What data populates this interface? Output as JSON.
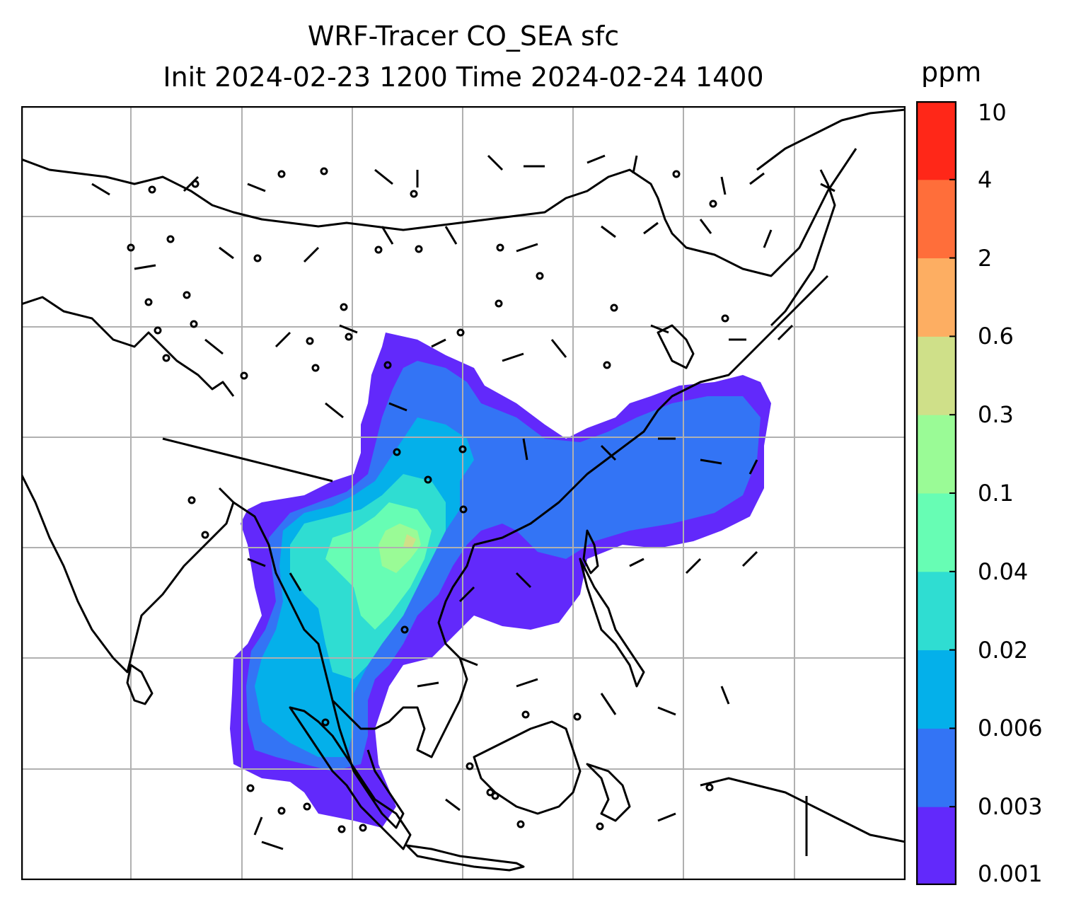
{
  "title": {
    "line1": "WRF-Tracer CO_SEA sfc",
    "line2": "Init 2024-02-23 1200 Time 2024-02-24 1400"
  },
  "colorbar": {
    "unit": "ppm",
    "ticks": [
      "0.001",
      "0.003",
      "0.006",
      "0.02",
      "0.04",
      "0.1",
      "0.3",
      "0.6",
      "2",
      "4",
      "10"
    ],
    "colors": [
      "#6229fb",
      "#3374f5",
      "#04b0ea",
      "#2fddd2",
      "#67fdb4",
      "#9afb96",
      "#cfe089",
      "#fdae62",
      "#ff6e3a",
      "#ff2718"
    ]
  },
  "map": {
    "background": "#ffffff",
    "coastline_color": "#000000",
    "gridline_color": "#b0b0b0",
    "field_classes": [
      "0.001-0.003",
      "0.003-0.006",
      "0.006-0.02",
      "0.02-0.04",
      "0.04-0.1",
      "0.1-0.3"
    ]
  }
}
